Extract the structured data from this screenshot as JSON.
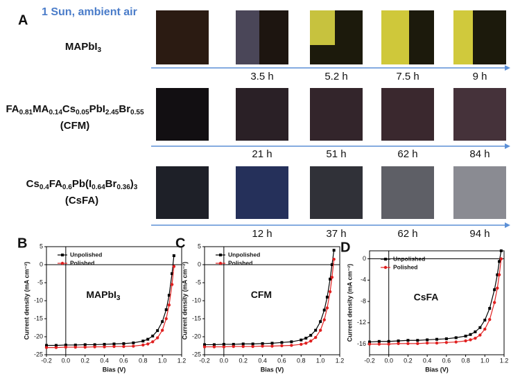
{
  "panel_a": {
    "label": "A",
    "condition": "1 Sun, ambient air",
    "rows": [
      {
        "formula": [
          "MAPbI",
          "3"
        ],
        "times": [
          "3.5 h",
          "5.2 h",
          "7.5 h",
          "9 h"
        ]
      },
      {
        "formula": [
          "FA",
          "0.81",
          "MA",
          "0.14",
          "Cs",
          "0.05",
          "PbI",
          "2.45",
          "Br",
          "0.55"
        ],
        "abbr": "(CFM)",
        "times": [
          "21 h",
          "51 h",
          "62 h",
          "84 h"
        ]
      },
      {
        "formula": [
          "Cs",
          "0.4",
          "FA",
          "0.6",
          "Pb(I",
          "0.64",
          "Br",
          "0.36",
          ")",
          "3"
        ],
        "abbr": "(CsFA)",
        "times": [
          "12 h",
          "37 h",
          "62 h",
          "94 h"
        ]
      }
    ]
  },
  "chart_data": [
    {
      "type": "line",
      "panel": "B",
      "annotation": [
        "MAPbI",
        "3"
      ],
      "xlabel": "Bias (V)",
      "ylabel": "Current density (mA cm⁻²)",
      "xlim": [
        -0.2,
        1.2
      ],
      "xticks": [
        -0.2,
        {
          "value": 0,
          "label": "0.0"
        },
        0.2,
        0.4,
        0.6,
        0.8,
        {
          "value": 1,
          "label": "1.0"
        },
        1.2
      ],
      "ylim": [
        -25,
        5
      ],
      "yticks": [
        5,
        0,
        -5,
        -10,
        -15,
        -20,
        -25
      ],
      "x": [
        -0.2,
        -0.1,
        0,
        0.1,
        0.2,
        0.3,
        0.4,
        0.5,
        0.6,
        0.7,
        0.8,
        0.85,
        0.9,
        0.95,
        1.0,
        1.04,
        1.07,
        1.1,
        1.12
      ],
      "series": [
        {
          "name": "Unpolished",
          "color": "#000000",
          "marker": "square",
          "values": [
            -22.4,
            -22.4,
            -22.3,
            -22.3,
            -22.2,
            -22.2,
            -22.1,
            -22.0,
            -21.9,
            -21.7,
            -21.2,
            -20.7,
            -19.8,
            -18.3,
            -15.8,
            -12.5,
            -8.5,
            -2.5,
            2.5
          ]
        },
        {
          "name": "Polished",
          "color": "#e02020",
          "marker": "circle",
          "values": [
            -23.0,
            -23.0,
            -22.9,
            -22.9,
            -22.9,
            -22.8,
            -22.8,
            -22.7,
            -22.7,
            -22.6,
            -22.3,
            -22.0,
            -21.4,
            -20.3,
            -18.2,
            -15.0,
            -11.2,
            -5.5,
            -0.5
          ]
        }
      ]
    },
    {
      "type": "line",
      "panel": "C",
      "annotation": [
        "CFM"
      ],
      "xlabel": "Bias (V)",
      "ylabel": "Current density (mA cm⁻²)",
      "xlim": [
        -0.2,
        1.2
      ],
      "xticks": [
        -0.2,
        {
          "value": 0,
          "label": "0.0"
        },
        0.2,
        0.4,
        0.6,
        0.8,
        {
          "value": 1,
          "label": "1.0"
        },
        1.2
      ],
      "ylim": [
        -25,
        5
      ],
      "yticks": [
        5,
        0,
        -5,
        -10,
        -15,
        -20,
        -25
      ],
      "x": [
        -0.2,
        -0.1,
        0,
        0.1,
        0.2,
        0.3,
        0.4,
        0.5,
        0.6,
        0.7,
        0.8,
        0.85,
        0.9,
        0.95,
        1.0,
        1.04,
        1.07,
        1.1,
        1.12,
        1.14
      ],
      "series": [
        {
          "name": "Unpolished",
          "color": "#000000",
          "marker": "square",
          "values": [
            -22.2,
            -22.2,
            -22.1,
            -22.1,
            -22.0,
            -22.0,
            -21.9,
            -21.8,
            -21.6,
            -21.4,
            -20.9,
            -20.4,
            -19.6,
            -18.2,
            -15.8,
            -12.6,
            -9.0,
            -4.0,
            0.0,
            4.0
          ]
        },
        {
          "name": "Polished",
          "color": "#e02020",
          "marker": "circle",
          "values": [
            -22.8,
            -22.8,
            -22.8,
            -22.7,
            -22.7,
            -22.7,
            -22.6,
            -22.6,
            -22.5,
            -22.4,
            -22.1,
            -21.8,
            -21.2,
            -20.2,
            -18.2,
            -15.3,
            -12.0,
            -7.5,
            -3.5,
            1.5
          ]
        }
      ]
    },
    {
      "type": "line",
      "panel": "D",
      "annotation": [
        "CsFA"
      ],
      "xlabel": "Bias (V)",
      "ylabel": "Current density (mA cm⁻²)",
      "xlim": [
        -0.2,
        1.2
      ],
      "xticks": [
        -0.2,
        {
          "value": 0,
          "label": "0.0"
        },
        0.2,
        0.4,
        0.6,
        0.8,
        {
          "value": 1,
          "label": "1.0"
        },
        1.2
      ],
      "ylim": [
        -18,
        1.5
      ],
      "yticks": [
        0,
        -4,
        -8,
        -12,
        -16
      ],
      "x": [
        -0.2,
        -0.1,
        0,
        0.1,
        0.2,
        0.3,
        0.4,
        0.5,
        0.6,
        0.7,
        0.8,
        0.85,
        0.9,
        0.95,
        1.0,
        1.05,
        1.1,
        1.13,
        1.15,
        1.17
      ],
      "series": [
        {
          "name": "Unpolished",
          "color": "#000000",
          "marker": "square",
          "values": [
            -15.6,
            -15.5,
            -15.5,
            -15.4,
            -15.3,
            -15.3,
            -15.2,
            -15.1,
            -15.0,
            -14.8,
            -14.5,
            -14.2,
            -13.7,
            -12.9,
            -11.5,
            -9.3,
            -5.8,
            -3.0,
            -0.5,
            1.5
          ]
        },
        {
          "name": "Polished",
          "color": "#e02020",
          "marker": "circle",
          "values": [
            -16.0,
            -16.0,
            -16.0,
            -15.9,
            -15.9,
            -15.9,
            -15.8,
            -15.8,
            -15.7,
            -15.6,
            -15.4,
            -15.2,
            -14.9,
            -14.3,
            -13.2,
            -11.4,
            -8.2,
            -5.5,
            -3.0,
            0.0
          ]
        }
      ]
    }
  ]
}
